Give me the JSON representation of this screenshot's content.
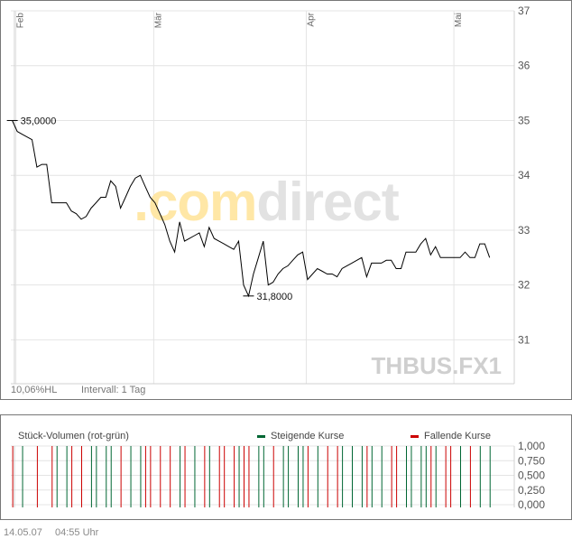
{
  "chart_data": [
    {
      "type": "line",
      "title": "",
      "ylim": [
        30.2,
        37
      ],
      "yticks": [
        31,
        32,
        33,
        34,
        35,
        36,
        37
      ],
      "grid": true,
      "x_months": [
        {
          "label": "Feb",
          "day": 0
        },
        {
          "label": "Mär",
          "day": 28
        },
        {
          "label": "Apr",
          "day": 59
        },
        {
          "label": "Mai",
          "day": 89
        }
      ],
      "x_range_days": [
        -0.3,
        102
      ],
      "series": [
        {
          "values": [
            [
              0,
              35.0
            ],
            [
              1,
              34.8
            ],
            [
              2,
              34.75
            ],
            [
              3,
              34.7
            ],
            [
              4,
              34.65
            ],
            [
              5,
              34.15
            ],
            [
              6,
              34.2
            ],
            [
              7,
              34.2
            ],
            [
              8,
              33.5
            ],
            [
              9,
              33.5
            ],
            [
              10,
              33.5
            ],
            [
              11,
              33.5
            ],
            [
              12,
              33.35
            ],
            [
              13,
              33.3
            ],
            [
              14,
              33.2
            ],
            [
              15,
              33.25
            ],
            [
              16,
              33.4
            ],
            [
              17,
              33.5
            ],
            [
              18,
              33.6
            ],
            [
              19,
              33.6
            ],
            [
              20,
              33.9
            ],
            [
              21,
              33.8
            ],
            [
              22,
              33.4
            ],
            [
              23,
              33.6
            ],
            [
              24,
              33.8
            ],
            [
              25,
              33.95
            ],
            [
              26,
              34.0
            ],
            [
              27,
              33.8
            ],
            [
              28,
              33.6
            ],
            [
              29,
              33.5
            ],
            [
              30,
              33.3
            ],
            [
              31,
              33.1
            ],
            [
              32,
              32.8
            ],
            [
              33,
              32.6
            ],
            [
              34,
              33.15
            ],
            [
              35,
              32.8
            ],
            [
              36,
              32.85
            ],
            [
              37,
              32.9
            ],
            [
              38,
              32.95
            ],
            [
              39,
              32.7
            ],
            [
              40,
              33.05
            ],
            [
              41,
              32.85
            ],
            [
              42,
              32.8
            ],
            [
              43,
              32.75
            ],
            [
              44,
              32.7
            ],
            [
              45,
              32.65
            ],
            [
              46,
              32.8
            ],
            [
              47,
              32.0
            ],
            [
              48,
              31.8
            ],
            [
              49,
              32.2
            ],
            [
              50,
              32.5
            ],
            [
              51,
              32.8
            ],
            [
              52,
              32.0
            ],
            [
              53,
              32.05
            ],
            [
              54,
              32.2
            ],
            [
              55,
              32.3
            ],
            [
              56,
              32.35
            ],
            [
              57,
              32.45
            ],
            [
              58,
              32.55
            ],
            [
              59,
              32.6
            ],
            [
              60,
              32.1
            ],
            [
              61,
              32.2
            ],
            [
              62,
              32.3
            ],
            [
              63,
              32.25
            ],
            [
              64,
              32.2
            ],
            [
              65,
              32.2
            ],
            [
              66,
              32.15
            ],
            [
              67,
              32.3
            ],
            [
              68,
              32.35
            ],
            [
              69,
              32.4
            ],
            [
              70,
              32.45
            ],
            [
              71,
              32.5
            ],
            [
              72,
              32.15
            ],
            [
              73,
              32.4
            ],
            [
              74,
              32.4
            ],
            [
              75,
              32.4
            ],
            [
              76,
              32.45
            ],
            [
              77,
              32.45
            ],
            [
              78,
              32.3
            ],
            [
              79,
              32.3
            ],
            [
              80,
              32.6
            ],
            [
              81,
              32.6
            ],
            [
              82,
              32.6
            ],
            [
              83,
              32.75
            ],
            [
              84,
              32.85
            ],
            [
              85,
              32.55
            ],
            [
              86,
              32.7
            ],
            [
              87,
              32.5
            ],
            [
              88,
              32.5
            ],
            [
              89,
              32.5
            ],
            [
              90,
              32.5
            ],
            [
              91,
              32.5
            ],
            [
              92,
              32.6
            ],
            [
              93,
              32.5
            ],
            [
              94,
              32.5
            ],
            [
              95,
              32.75
            ],
            [
              96,
              32.75
            ],
            [
              97,
              32.5
            ]
          ]
        }
      ],
      "annotations": [
        {
          "label": "35,0000",
          "day": 0,
          "value": 35.0
        },
        {
          "label": "31,8000",
          "day": 48,
          "value": 31.8
        }
      ]
    },
    {
      "type": "bar",
      "title": "Stück-Volumen (rot-grün)",
      "ylim": [
        0,
        1
      ],
      "yticks": [
        "1,000",
        "0,750",
        "0,500",
        "0,250",
        "0,000"
      ],
      "legend": [
        {
          "label": "Steigende Kurse",
          "color": "#006633"
        },
        {
          "label": "Fallende Kurse",
          "color": "#cc0000"
        }
      ],
      "bars": [
        {
          "day": 0,
          "dir": "down"
        },
        {
          "day": 2,
          "dir": "up"
        },
        {
          "day": 5,
          "dir": "down"
        },
        {
          "day": 8,
          "dir": "down"
        },
        {
          "day": 9,
          "dir": "up"
        },
        {
          "day": 11,
          "dir": "up"
        },
        {
          "day": 12,
          "dir": "down"
        },
        {
          "day": 14,
          "dir": "down"
        },
        {
          "day": 16,
          "dir": "up"
        },
        {
          "day": 17,
          "dir": "up"
        },
        {
          "day": 19,
          "dir": "up"
        },
        {
          "day": 20,
          "dir": "up"
        },
        {
          "day": 22,
          "dir": "down"
        },
        {
          "day": 24,
          "dir": "up"
        },
        {
          "day": 26,
          "dir": "up"
        },
        {
          "day": 27,
          "dir": "down"
        },
        {
          "day": 28,
          "dir": "down"
        },
        {
          "day": 30,
          "dir": "down"
        },
        {
          "day": 32,
          "dir": "down"
        },
        {
          "day": 34,
          "dir": "up"
        },
        {
          "day": 35,
          "dir": "down"
        },
        {
          "day": 37,
          "dir": "up"
        },
        {
          "day": 39,
          "dir": "down"
        },
        {
          "day": 40,
          "dir": "up"
        },
        {
          "day": 42,
          "dir": "down"
        },
        {
          "day": 43,
          "dir": "down"
        },
        {
          "day": 45,
          "dir": "down"
        },
        {
          "day": 46,
          "dir": "up"
        },
        {
          "day": 47,
          "dir": "down"
        },
        {
          "day": 48,
          "dir": "down"
        },
        {
          "day": 50,
          "dir": "up"
        },
        {
          "day": 51,
          "dir": "up"
        },
        {
          "day": 53,
          "dir": "down"
        },
        {
          "day": 55,
          "dir": "up"
        },
        {
          "day": 56,
          "dir": "up"
        },
        {
          "day": 58,
          "dir": "up"
        },
        {
          "day": 59,
          "dir": "up"
        },
        {
          "day": 60,
          "dir": "down"
        },
        {
          "day": 62,
          "dir": "up"
        },
        {
          "day": 64,
          "dir": "down"
        },
        {
          "day": 66,
          "dir": "down"
        },
        {
          "day": 67,
          "dir": "up"
        },
        {
          "day": 69,
          "dir": "up"
        },
        {
          "day": 71,
          "dir": "up"
        },
        {
          "day": 72,
          "dir": "down"
        },
        {
          "day": 73,
          "dir": "up"
        },
        {
          "day": 75,
          "dir": "up"
        },
        {
          "day": 77,
          "dir": "down"
        },
        {
          "day": 78,
          "dir": "down"
        },
        {
          "day": 80,
          "dir": "up"
        },
        {
          "day": 81,
          "dir": "up"
        },
        {
          "day": 83,
          "dir": "up"
        },
        {
          "day": 84,
          "dir": "up"
        },
        {
          "day": 85,
          "dir": "down"
        },
        {
          "day": 86,
          "dir": "up"
        },
        {
          "day": 88,
          "dir": "down"
        },
        {
          "day": 89,
          "dir": "down"
        },
        {
          "day": 91,
          "dir": "up"
        },
        {
          "day": 93,
          "dir": "down"
        },
        {
          "day": 95,
          "dir": "up"
        },
        {
          "day": 97,
          "dir": "up"
        }
      ]
    }
  ],
  "texts": {
    "watermark_com": ".com",
    "watermark_direct": "direct",
    "symbol": "THBUS.FX1",
    "hl": "10,06%HL",
    "interval": "Intervall: 1 Tag",
    "date": "14.05.07",
    "time": "04:55 Uhr"
  },
  "colors": {
    "up": "#006633",
    "down": "#cc0000",
    "line": "#000000",
    "grid": "#e4e4e4",
    "frame": "#777777",
    "watermark_com": "#ffe7a6",
    "watermark_direct": "#e2e2e2",
    "symbol": "#cfcfcf"
  }
}
